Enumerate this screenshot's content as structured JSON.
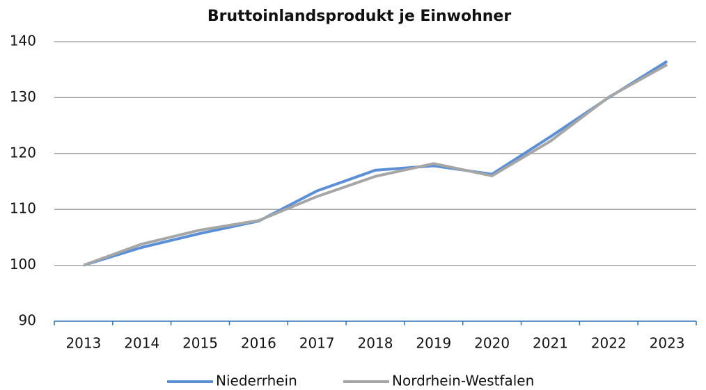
{
  "chart_data": {
    "type": "line",
    "title": "Bruttoinlandsprodukt je Einwohner",
    "categories": [
      "2013",
      "2014",
      "2015",
      "2016",
      "2017",
      "2018",
      "2019",
      "2020",
      "2021",
      "2022",
      "2023"
    ],
    "series": [
      {
        "name": "Niederrhein",
        "color": "#5b8fd6",
        "values": [
          100,
          103.2,
          105.7,
          107.9,
          113.3,
          117.0,
          117.8,
          116.3,
          123.0,
          130.0,
          136.5
        ]
      },
      {
        "name": "Nordrhein-Westfalen",
        "color": "#a6a6a6",
        "values": [
          100,
          103.8,
          106.3,
          108.0,
          112.3,
          115.9,
          118.2,
          116.0,
          122.2,
          130.1,
          135.9
        ]
      }
    ],
    "ylim": [
      90,
      140
    ],
    "yticks": [
      90,
      100,
      110,
      120,
      130,
      140
    ],
    "grid": true,
    "legend": "bottom"
  }
}
